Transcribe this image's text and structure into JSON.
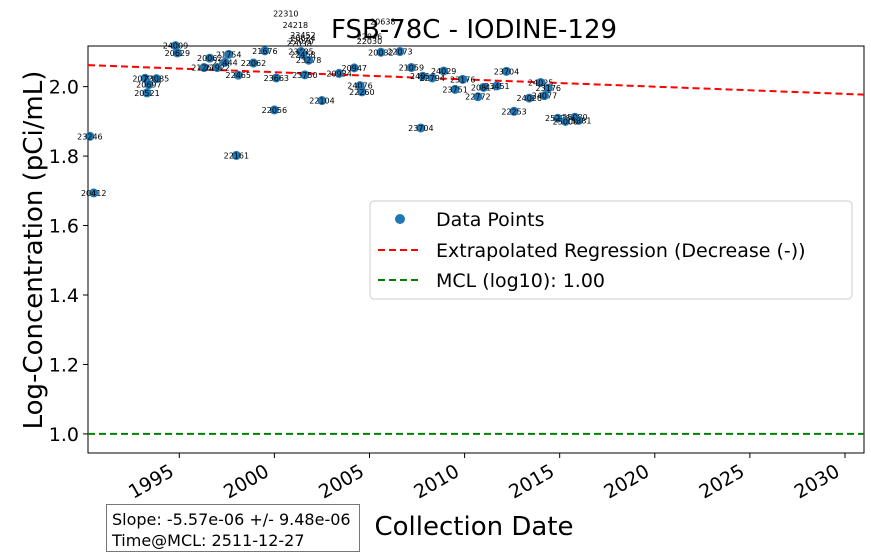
{
  "chart_data": {
    "type": "scatter",
    "title": "FSB-78C - IODINE-129",
    "xlabel": "Collection Date",
    "ylabel": "Log-Concentration (pCi/mL)",
    "xlim": [
      1990.2,
      2031.0
    ],
    "ylim": [
      0.945,
      2.117
    ],
    "x_ticks": [
      1995,
      2000,
      2005,
      2010,
      2015,
      2020,
      2025,
      2030
    ],
    "y_ticks": [
      1.0,
      1.2,
      1.4,
      1.6,
      1.8,
      2.0
    ],
    "y_tick_labels": [
      "1.0",
      "1.2",
      "1.4",
      "1.6",
      "1.8",
      "2.0"
    ],
    "grid": false,
    "legend_position": "center-right",
    "legend": [
      {
        "label": "Data Points",
        "kind": "marker",
        "color": "#1f77b4"
      },
      {
        "label": "Extrapolated Regression (Decrease (-))",
        "kind": "dashed-line",
        "color": "#ff0000"
      },
      {
        "label": "MCL (log10): 1.00",
        "kind": "dashed-line",
        "color": "#008000"
      }
    ],
    "regression": {
      "x": [
        1990.2,
        2031.0
      ],
      "y": [
        2.062,
        1.977
      ],
      "color": "#ff0000"
    },
    "mcl": {
      "y": 1.0,
      "color": "#008000"
    },
    "marker_color": "#1f77b4",
    "points": [
      {
        "label": "23246",
        "x": 1990.3,
        "y": 1.857
      },
      {
        "label": "20412",
        "x": 1990.5,
        "y": 1.694
      },
      {
        "label": "24009",
        "x": 1994.8,
        "y": 2.118
      },
      {
        "label": "20629",
        "x": 1994.9,
        "y": 2.097
      },
      {
        "label": "20722",
        "x": 1993.2,
        "y": 2.024
      },
      {
        "label": "23085",
        "x": 1993.8,
        "y": 2.023
      },
      {
        "label": "20697",
        "x": 1993.4,
        "y": 2.006
      },
      {
        "label": "20521",
        "x": 1993.3,
        "y": 1.982
      },
      {
        "label": "21264",
        "x": 1996.3,
        "y": 2.055
      },
      {
        "label": "20062",
        "x": 1996.6,
        "y": 2.082
      },
      {
        "label": "21754",
        "x": 1997.6,
        "y": 2.093
      },
      {
        "label": "21444",
        "x": 1997.4,
        "y": 2.07
      },
      {
        "label": "21922",
        "x": 1997.0,
        "y": 2.055
      },
      {
        "label": "22465",
        "x": 1998.1,
        "y": 2.033
      },
      {
        "label": "22062",
        "x": 1998.9,
        "y": 2.068
      },
      {
        "label": "21676",
        "x": 1999.5,
        "y": 2.103
      },
      {
        "label": "23663",
        "x": 2000.1,
        "y": 2.025
      },
      {
        "label": "22056",
        "x": 2000.0,
        "y": 1.933
      },
      {
        "label": "22161",
        "x": 1998.0,
        "y": 1.802
      },
      {
        "label": "22310",
        "x": 2000.6,
        "y": 2.21
      },
      {
        "label": "24218",
        "x": 2001.1,
        "y": 2.177
      },
      {
        "label": "23452",
        "x": 2001.5,
        "y": 2.149
      },
      {
        "label": "20624",
        "x": 2001.5,
        "y": 2.14
      },
      {
        "label": "22070",
        "x": 2001.4,
        "y": 2.131
      },
      {
        "label": "22038",
        "x": 2001.3,
        "y": 2.124
      },
      {
        "label": "23485",
        "x": 2001.4,
        "y": 2.101
      },
      {
        "label": "22458",
        "x": 2001.5,
        "y": 2.092
      },
      {
        "label": "23278",
        "x": 2001.8,
        "y": 2.076
      },
      {
        "label": "23750",
        "x": 2001.6,
        "y": 2.034
      },
      {
        "label": "22104",
        "x": 2002.5,
        "y": 1.96
      },
      {
        "label": "20934",
        "x": 2003.4,
        "y": 2.038
      },
      {
        "label": "20947",
        "x": 2004.2,
        "y": 2.054
      },
      {
        "label": "24076",
        "x": 2004.5,
        "y": 2.003
      },
      {
        "label": "22260",
        "x": 2004.6,
        "y": 1.985
      },
      {
        "label": "22846",
        "x": 2005.0,
        "y": 2.144
      },
      {
        "label": "22030",
        "x": 2005.0,
        "y": 2.131
      },
      {
        "label": "20638",
        "x": 2005.7,
        "y": 2.187
      },
      {
        "label": "20032",
        "x": 2005.6,
        "y": 2.099
      },
      {
        "label": "22073",
        "x": 2006.6,
        "y": 2.101
      },
      {
        "label": "21059",
        "x": 2007.2,
        "y": 2.055
      },
      {
        "label": "24029",
        "x": 2008.9,
        "y": 2.045
      },
      {
        "label": "24018",
        "x": 2007.8,
        "y": 2.03
      },
      {
        "label": "22794",
        "x": 2008.3,
        "y": 2.025
      },
      {
        "label": "23176",
        "x": 2009.9,
        "y": 2.021
      },
      {
        "label": "23751",
        "x": 2009.5,
        "y": 1.992
      },
      {
        "label": "20814",
        "x": 2011.0,
        "y": 1.998
      },
      {
        "label": "23451",
        "x": 2011.7,
        "y": 2.002
      },
      {
        "label": "22772",
        "x": 2010.7,
        "y": 1.971
      },
      {
        "label": "23704",
        "x": 2012.2,
        "y": 2.044
      },
      {
        "label": "23704",
        "x": 2007.7,
        "y": 1.881
      },
      {
        "label": "22253",
        "x": 2012.6,
        "y": 1.929
      },
      {
        "label": "24025",
        "x": 2014.0,
        "y": 2.012
      },
      {
        "label": "23176",
        "x": 2014.4,
        "y": 1.996
      },
      {
        "label": "24026",
        "x": 2013.4,
        "y": 1.967
      },
      {
        "label": "24077",
        "x": 2014.2,
        "y": 1.974
      },
      {
        "label": "25080",
        "x": 2015.8,
        "y": 1.912
      },
      {
        "label": "25276",
        "x": 2014.9,
        "y": 1.909
      },
      {
        "label": "25381",
        "x": 2016.0,
        "y": 1.903
      },
      {
        "label": "25000",
        "x": 2015.3,
        "y": 1.9
      }
    ],
    "annotation_lines": [
      "Slope: -5.57e-06 +/- 9.48e-06",
      "Time@MCL: 2511-12-27"
    ]
  }
}
